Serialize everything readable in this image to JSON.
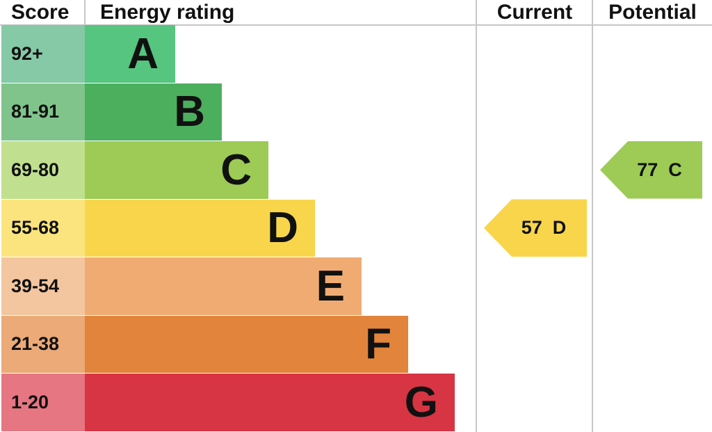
{
  "headers": {
    "score": "Score",
    "energy_rating": "Energy rating",
    "current": "Current",
    "potential": "Potential"
  },
  "chart_data": {
    "type": "bar",
    "bands": [
      {
        "letter": "A",
        "range": "92+",
        "bar_color": "#55c57f",
        "score_color": "#86c9a7"
      },
      {
        "letter": "B",
        "range": "81-91",
        "bar_color": "#4caf5e",
        "score_color": "#80c48c"
      },
      {
        "letter": "C",
        "range": "69-80",
        "bar_color": "#9dcb55",
        "score_color": "#c0e08f"
      },
      {
        "letter": "D",
        "range": "55-68",
        "bar_color": "#f8d54b",
        "score_color": "#fbe47d"
      },
      {
        "letter": "E",
        "range": "39-54",
        "bar_color": "#f0ab73",
        "score_color": "#f4c69f"
      },
      {
        "letter": "F",
        "range": "21-38",
        "bar_color": "#e2843b",
        "score_color": "#ebaa77"
      },
      {
        "letter": "G",
        "range": "1-20",
        "bar_color": "#d73444",
        "score_color": "#e67682"
      }
    ],
    "current": {
      "score": 57,
      "band": "D",
      "label": "57  D",
      "color": "#f8d54b"
    },
    "potential": {
      "score": 77,
      "band": "C",
      "label": "77  C",
      "color": "#9dcb55"
    }
  }
}
